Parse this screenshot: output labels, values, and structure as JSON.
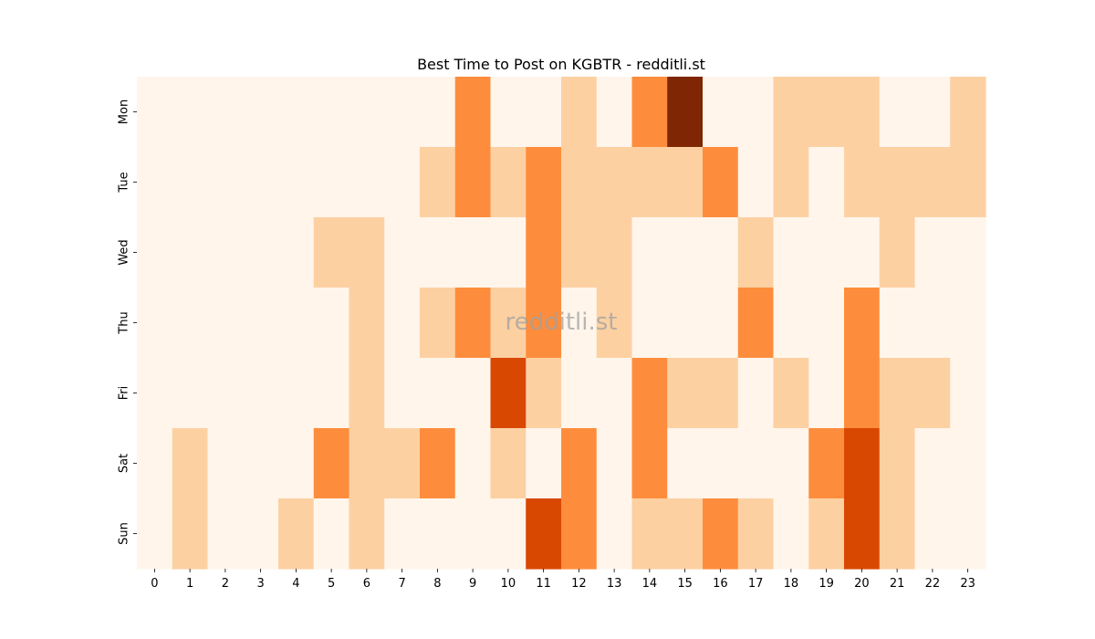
{
  "chart_data": {
    "type": "heatmap",
    "title": "Best Time to Post on KGBTR - redditli.st",
    "watermark": "redditli.st",
    "xlabel": "",
    "ylabel": "",
    "x": [
      "0",
      "1",
      "2",
      "3",
      "4",
      "5",
      "6",
      "7",
      "8",
      "9",
      "10",
      "11",
      "12",
      "13",
      "14",
      "15",
      "16",
      "17",
      "18",
      "19",
      "20",
      "21",
      "22",
      "23"
    ],
    "y": [
      "Mon",
      "Tue",
      "Wed",
      "Thu",
      "Fri",
      "Sat",
      "Sun"
    ],
    "values": [
      [
        0,
        0,
        0,
        0,
        0,
        0,
        0,
        0,
        0,
        2,
        0,
        0,
        1,
        0,
        2,
        5,
        0,
        0,
        1,
        1,
        1,
        0,
        0,
        1
      ],
      [
        0,
        0,
        0,
        0,
        0,
        0,
        0,
        0,
        1,
        2,
        1,
        2,
        1,
        1,
        1,
        1,
        2,
        0,
        1,
        0,
        1,
        1,
        1,
        1
      ],
      [
        0,
        0,
        0,
        0,
        0,
        1,
        1,
        0,
        0,
        0,
        0,
        2,
        1,
        1,
        0,
        0,
        0,
        1,
        0,
        0,
        0,
        1,
        0,
        0
      ],
      [
        0,
        0,
        0,
        0,
        0,
        0,
        1,
        0,
        1,
        2,
        1,
        2,
        0,
        1,
        0,
        0,
        0,
        2,
        0,
        0,
        2,
        0,
        0,
        0
      ],
      [
        0,
        0,
        0,
        0,
        0,
        0,
        1,
        0,
        0,
        0,
        3,
        1,
        0,
        0,
        2,
        1,
        1,
        0,
        1,
        0,
        2,
        1,
        1,
        0
      ],
      [
        0,
        1,
        0,
        0,
        0,
        2,
        1,
        1,
        2,
        0,
        1,
        0,
        2,
        0,
        2,
        0,
        0,
        0,
        0,
        2,
        3,
        1,
        0,
        0
      ],
      [
        0,
        1,
        0,
        0,
        1,
        0,
        1,
        0,
        0,
        0,
        0,
        3,
        2,
        0,
        1,
        1,
        2,
        1,
        0,
        1,
        3,
        1,
        0,
        0
      ]
    ],
    "color_levels": [
      "#fff5eb",
      "#fdd0a2",
      "#fd8d3c",
      "#d94801",
      "#a63603",
      "#7f2704"
    ],
    "colormap": "Oranges",
    "grid": false,
    "legend": "none"
  }
}
